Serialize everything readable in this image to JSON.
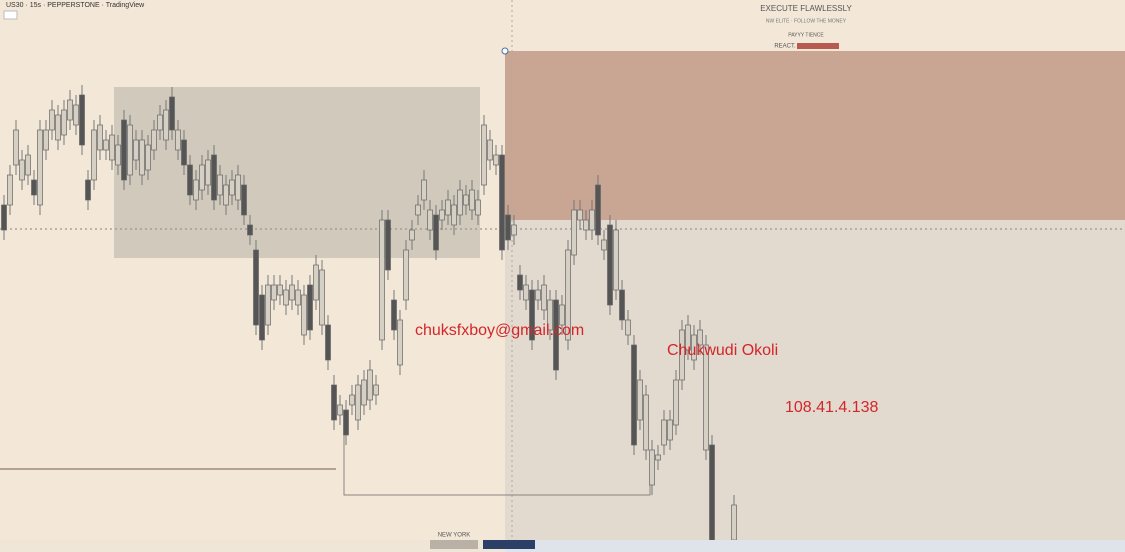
{
  "header": {
    "symbol": "US30 · 15s · PEPPERSTONE · TradingView"
  },
  "watermark": {
    "title": "EXECUTE FLAWLESSLY",
    "subtitle": "NW ELITE · FOLLOW THE MONEY",
    "line1": "PAYYY TIENCE",
    "line2": "REACT."
  },
  "overlay": {
    "email": "chuksfxboy@gmail.com",
    "name": "Chukwudi Okoli",
    "ip": "108.41.4.138"
  },
  "session": "NEW YORK"
}
